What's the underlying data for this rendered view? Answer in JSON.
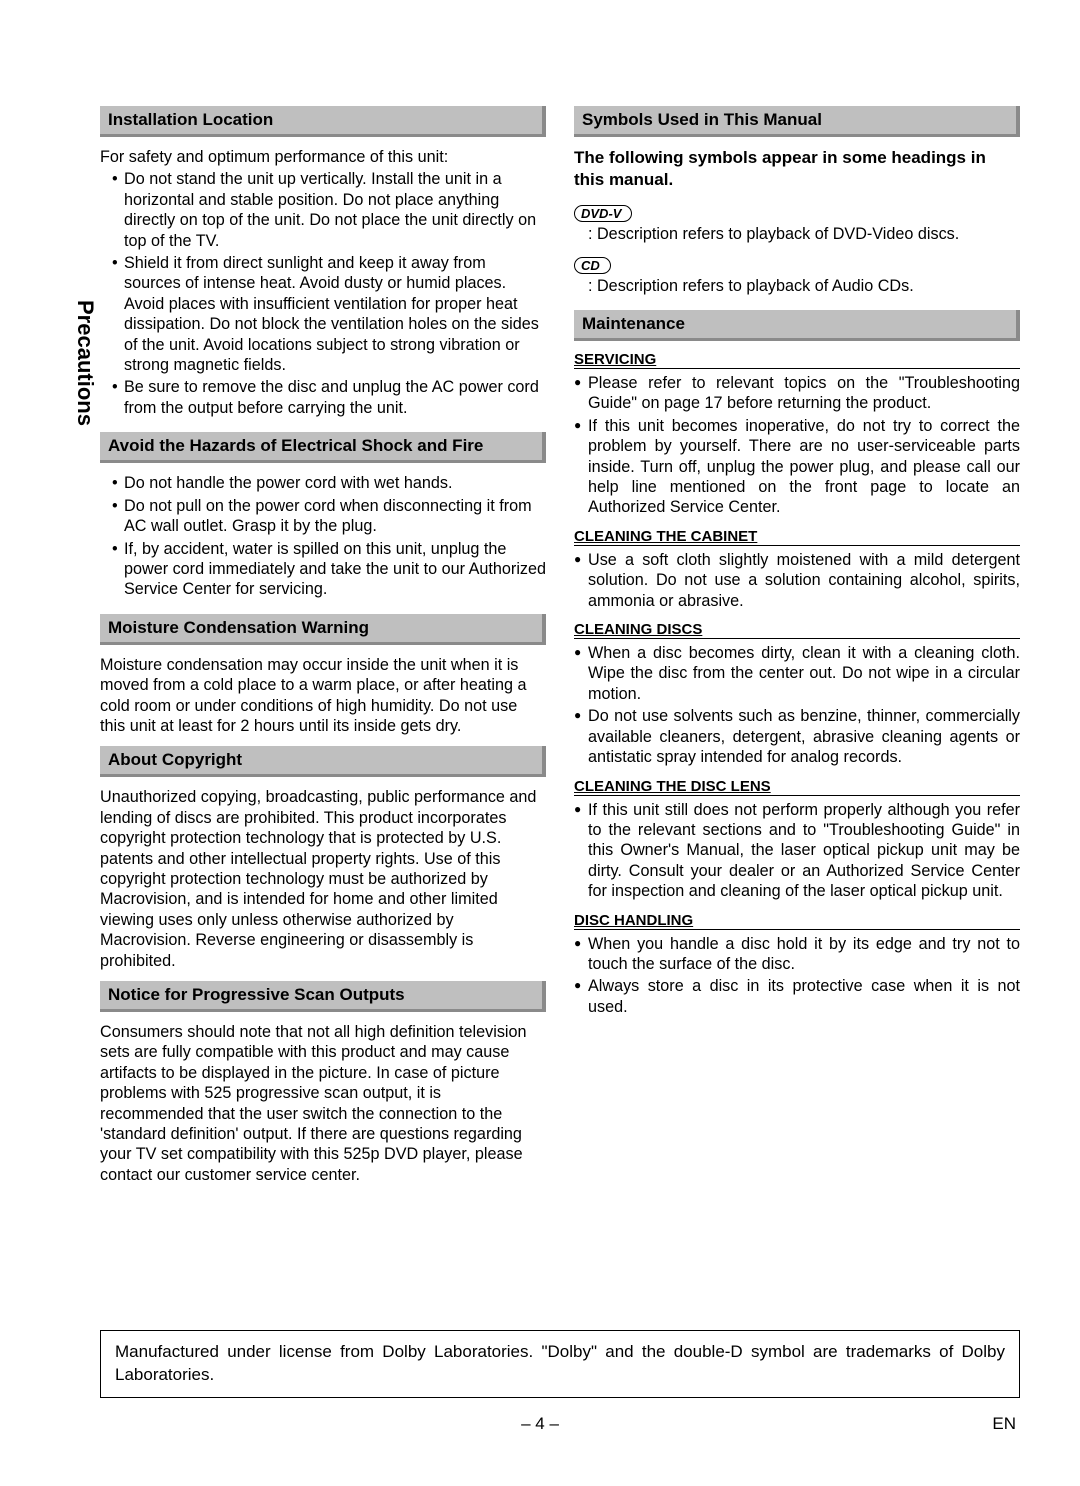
{
  "sidebar": {
    "label": "Precautions"
  },
  "left": {
    "h1": "Installation Location",
    "p1_intro": "For safety and optimum performance of this unit:",
    "p1_items": [
      "Do not stand the unit up vertically. Install the unit in a horizontal and stable position. Do not place anything directly on top of the unit. Do not place the unit directly on top of the TV.",
      "Shield it from direct sunlight and keep it away from sources of intense heat. Avoid dusty or humid places. Avoid places with insufficient ventilation for proper heat dissipation. Do not block the ventilation holes on the sides of the unit. Avoid locations subject to strong vibration or strong magnetic fields.",
      "Be sure to remove the disc and unplug the AC power cord from the output before carrying the unit."
    ],
    "h2": "Avoid the Hazards of Electrical Shock and Fire",
    "p2_items": [
      "Do not handle the power cord with wet hands.",
      "Do not pull on the power cord when disconnecting it from AC wall outlet. Grasp it by the plug.",
      "If, by accident, water is spilled on this unit, unplug the power cord immediately and take the unit to our Authorized Service Center for servicing."
    ],
    "h3": "Moisture Condensation Warning",
    "p3": "Moisture condensation may occur inside the unit when it is moved from a cold place to a warm place, or after heating a cold room or under conditions of high humidity. Do not use this unit at least for 2 hours until its inside gets dry.",
    "h4": "About Copyright",
    "p4": "Unauthorized copying, broadcasting, public performance and lending of discs are prohibited. This product incorporates copyright protection technology that is protected by U.S. patents and other intellectual property rights. Use of this copyright protection technology must be authorized by Macrovision, and is intended for home and other limited viewing uses only unless otherwise authorized by Macrovision. Reverse engineering or disassembly is prohibited.",
    "h5": "Notice for Progressive Scan Outputs",
    "p5": "Consumers should note that not all high definition television sets are fully compatible with this product and may cause artifacts to be displayed in the picture. In case of picture problems with 525 progressive scan output, it is recommended that the user switch the connection to the 'standard definition' output. If there are questions regarding your TV set compatibility with this 525p DVD player, please contact our customer service center."
  },
  "right": {
    "h1": "Symbols Used in This Manual",
    "intro_bold": "The following symbols appear in some headings in this manual.",
    "badge1": "DVD-V",
    "badge1_desc": ": Description refers to playback of DVD-Video discs.",
    "badge2": "CD",
    "badge2_desc": ": Description refers to playback of Audio CDs.",
    "h2": "Maintenance",
    "sub1": "SERVICING",
    "sub1_items": [
      "Please refer to relevant topics on the \"Troubleshooting Guide\" on page 17 before returning the product.",
      "If this unit becomes inoperative, do not try to correct the problem by yourself. There are no user-serviceable parts inside. Turn off, unplug the power plug, and please call our help line mentioned on the front page to locate an Authorized Service Center."
    ],
    "sub2": "CLEANING THE CABINET",
    "sub2_items": [
      "Use a soft cloth slightly moistened with a mild detergent solution. Do not use a solution containing alcohol, spirits, ammonia or abrasive."
    ],
    "sub3": "CLEANING DISCS",
    "sub3_items": [
      "When a disc becomes dirty, clean it with a cleaning cloth. Wipe the disc from the center out. Do not wipe in a circular motion.",
      "Do not use solvents such as benzine, thinner, commercially available cleaners, detergent, abrasive cleaning agents or antistatic spray intended for analog records."
    ],
    "sub4": "CLEANING THE DISC LENS",
    "sub4_items": [
      "If this unit still does not perform properly although you refer to the relevant sections and to \"Troubleshooting Guide\" in this Owner's Manual, the laser optical pickup unit may be dirty. Consult your dealer or an Authorized Service Center for inspection and cleaning of the laser optical pickup unit."
    ],
    "sub5": "DISC HANDLING",
    "sub5_items": [
      "When you handle a disc hold it by its edge and try not to touch the surface of the disc.",
      "Always store a disc in its protective case when it is not used."
    ]
  },
  "footer": {
    "text": "Manufactured under license from Dolby Laboratories. \"Dolby\" and the double-D symbol are trademarks of Dolby Laboratories.",
    "pagenum": "– 4 –",
    "lang": "EN"
  }
}
